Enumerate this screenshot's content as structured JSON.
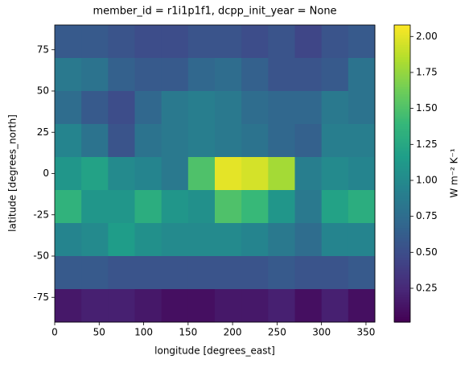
{
  "chart_data": {
    "type": "heatmap",
    "title": "member_id = r1i1p1f1, dcpp_init_year = None",
    "x_label": "longitude [degrees_east]",
    "y_label": "latitude [degrees_north]",
    "colorbar_label": "W m⁻² K⁻¹",
    "colormap": "viridis",
    "x": [
      15,
      45,
      75,
      105,
      135,
      165,
      195,
      225,
      255,
      285,
      315,
      345
    ],
    "y": [
      80,
      60,
      40,
      20,
      0,
      -20,
      -40,
      -60,
      -80
    ],
    "values": [
      [
        0.6,
        0.6,
        0.55,
        0.5,
        0.5,
        0.55,
        0.55,
        0.5,
        0.55,
        0.45,
        0.55,
        0.6
      ],
      [
        0.85,
        0.8,
        0.65,
        0.6,
        0.6,
        0.7,
        0.75,
        0.65,
        0.55,
        0.55,
        0.6,
        0.8
      ],
      [
        0.75,
        0.6,
        0.5,
        0.7,
        0.85,
        0.9,
        0.85,
        0.75,
        0.7,
        0.7,
        0.85,
        0.8
      ],
      [
        0.95,
        0.8,
        0.55,
        0.8,
        0.85,
        0.9,
        0.85,
        0.8,
        0.7,
        0.65,
        0.9,
        0.9
      ],
      [
        1.1,
        1.2,
        1.0,
        0.95,
        0.85,
        1.5,
        2.0,
        1.95,
        1.8,
        0.9,
        1.0,
        0.95
      ],
      [
        1.35,
        1.1,
        1.1,
        1.3,
        1.1,
        1.05,
        1.5,
        1.4,
        1.1,
        0.85,
        1.2,
        1.3
      ],
      [
        0.95,
        1.0,
        1.15,
        1.05,
        1.0,
        1.0,
        1.0,
        0.95,
        0.85,
        0.75,
        0.95,
        0.95
      ],
      [
        0.6,
        0.6,
        0.55,
        0.55,
        0.55,
        0.55,
        0.55,
        0.55,
        0.6,
        0.55,
        0.55,
        0.6
      ],
      [
        0.15,
        0.2,
        0.2,
        0.15,
        0.1,
        0.1,
        0.15,
        0.15,
        0.2,
        0.1,
        0.2,
        0.1
      ]
    ],
    "xlim": [
      0,
      360
    ],
    "ylim": [
      -90,
      90
    ],
    "xticks": [
      0,
      50,
      100,
      150,
      200,
      250,
      300,
      350
    ],
    "yticks": [
      -75,
      -50,
      -25,
      0,
      25,
      50,
      75
    ],
    "clim": [
      0.015,
      2.08
    ],
    "cticks": [
      0.25,
      {
        "value": 0.5,
        "label": "0.50"
      },
      0.75,
      {
        "value": 1.0,
        "label": "1.00"
      },
      1.25,
      {
        "value": 1.5,
        "label": "1.50"
      },
      1.75,
      {
        "value": 2.0,
        "label": "2.00"
      }
    ]
  }
}
